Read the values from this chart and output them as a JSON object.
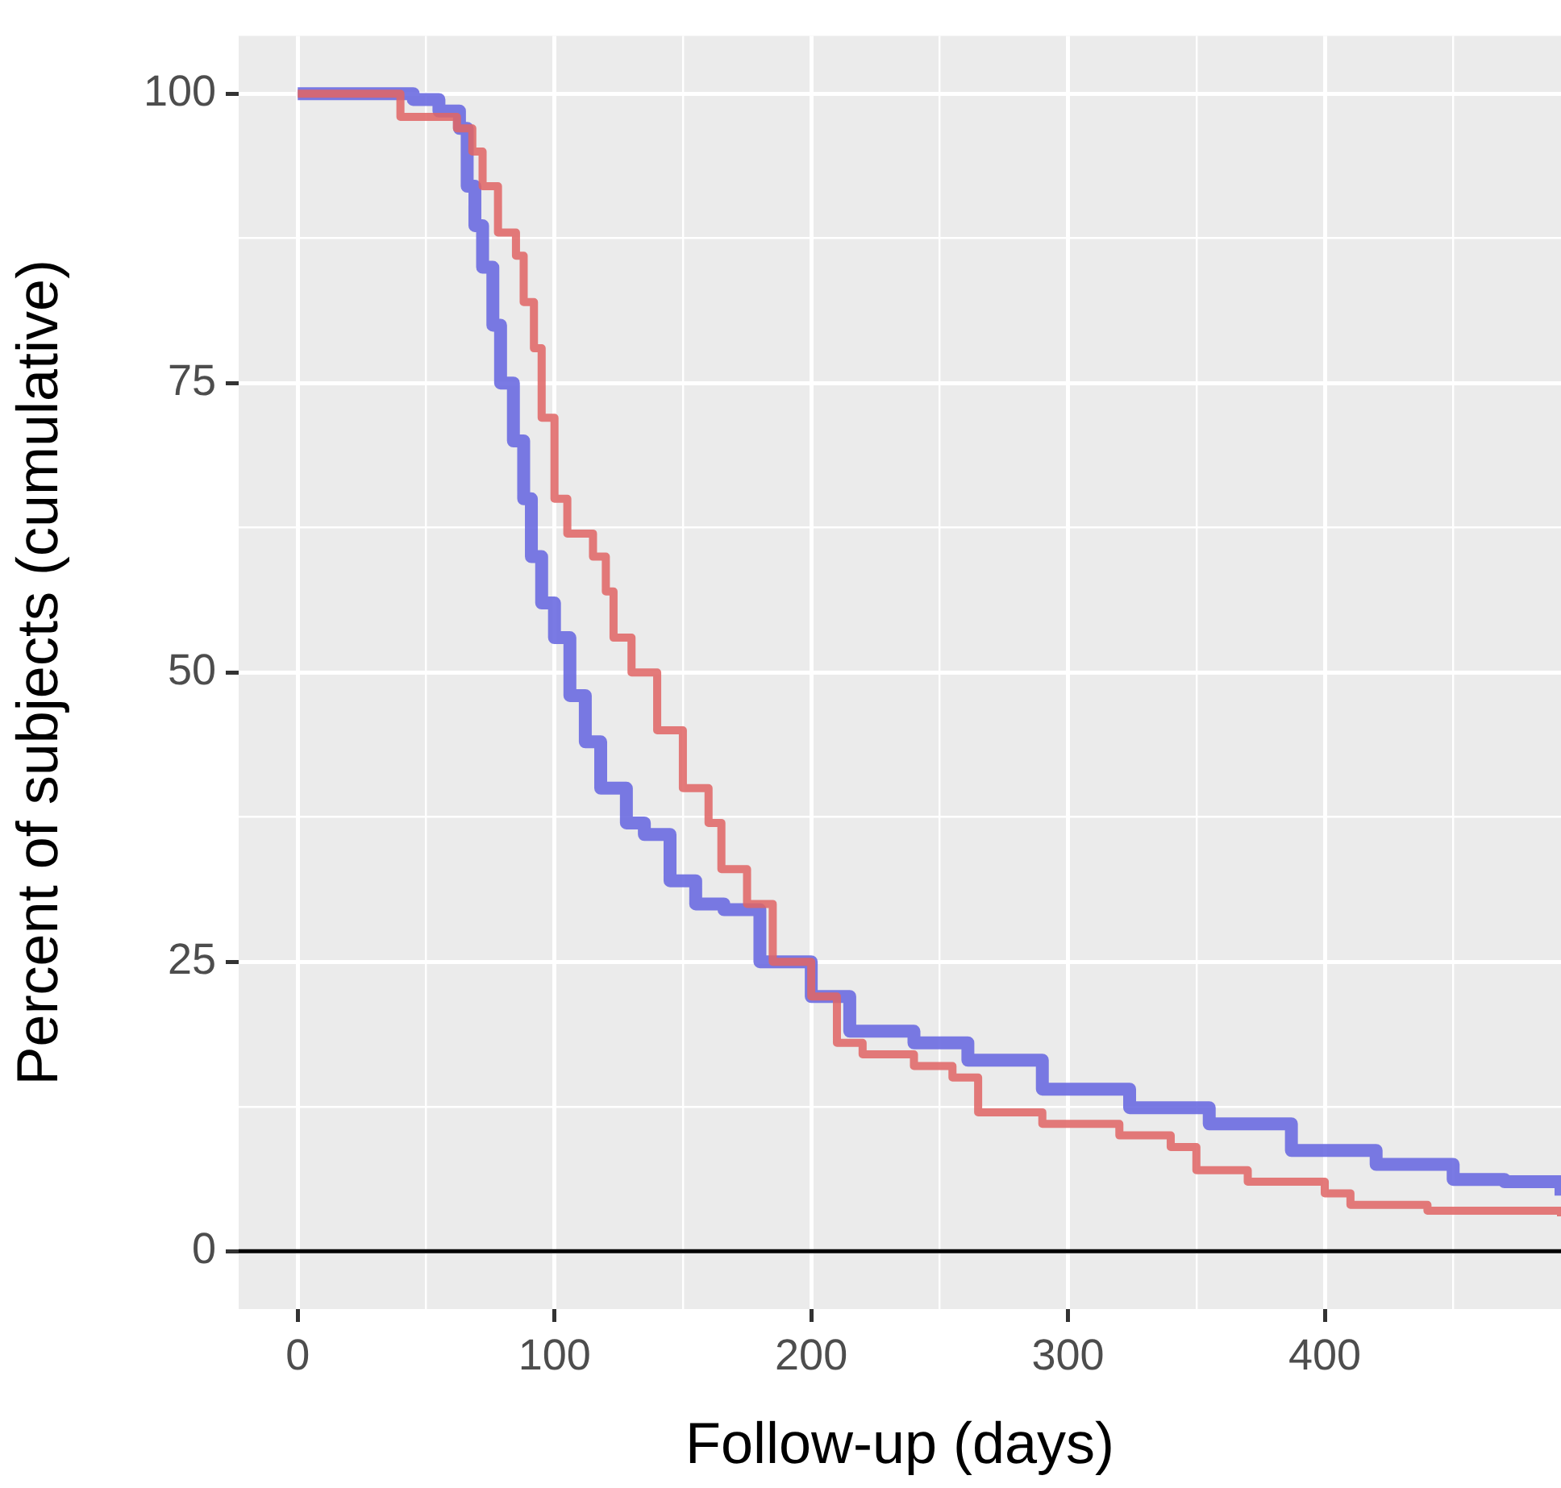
{
  "chart_data": {
    "type": "step",
    "xlabel": "Follow-up (days)",
    "ylabel": "Percent of subjects (cumulative)",
    "xlim": [
      -23,
      492
    ],
    "ylim": [
      -5,
      105
    ],
    "xticks": [
      0,
      {
        "value": 50,
        "label": null
      },
      100,
      {
        "value": 150,
        "label": null
      },
      200,
      {
        "value": 250,
        "label": null
      },
      300,
      {
        "value": 350,
        "label": null
      },
      400,
      {
        "value": 450,
        "label": null
      }
    ],
    "yticks": [
      0,
      {
        "value": 12.5,
        "label": null
      },
      25,
      {
        "value": 37.5,
        "label": null
      },
      50,
      {
        "value": 62.5,
        "label": null
      },
      75,
      {
        "value": 87.5,
        "label": null
      },
      100
    ],
    "grid": true,
    "legend": false,
    "marker": "none",
    "line_style": "solid",
    "ref_lines": [
      {
        "axis": "y",
        "value": 0,
        "color": "#000000"
      }
    ],
    "series": [
      {
        "color": "#e06666",
        "x": [
          0,
          38,
          40,
          60,
          62,
          68,
          72,
          78,
          85,
          88,
          92,
          95,
          100,
          105,
          115,
          120,
          123,
          130,
          140,
          150,
          160,
          165,
          175,
          185,
          200,
          210,
          220,
          240,
          255,
          265,
          290,
          320,
          340,
          350,
          370,
          400,
          410,
          440,
          492
        ],
        "values": [
          100,
          100,
          98,
          98,
          97,
          95,
          92,
          88,
          86,
          82,
          78,
          72,
          65,
          62,
          60,
          57,
          53,
          50,
          45,
          40,
          37,
          33,
          30,
          25,
          22,
          18,
          17,
          16,
          15,
          12,
          11,
          10,
          9,
          7,
          6,
          5,
          4,
          3.5,
          3
        ]
      },
      {
        "color": "#6666e0",
        "x": [
          0,
          40,
          45,
          55,
          63,
          66,
          69,
          72,
          76,
          79,
          84,
          88,
          91,
          95,
          100,
          106,
          112,
          118,
          128,
          135,
          145,
          155,
          166,
          180,
          200,
          215,
          240,
          261,
          290,
          324,
          355,
          387,
          420,
          450,
          470,
          492
        ],
        "values": [
          100,
          100,
          99.5,
          98.5,
          97,
          92,
          88.6,
          85,
          80,
          75,
          70,
          65,
          60,
          56,
          53,
          48,
          44,
          40,
          37,
          36,
          32,
          30,
          29.5,
          25,
          22,
          19,
          18,
          16.5,
          14,
          12.4,
          11,
          8.7,
          7.5,
          6.2,
          6,
          4.8
        ]
      }
    ]
  }
}
